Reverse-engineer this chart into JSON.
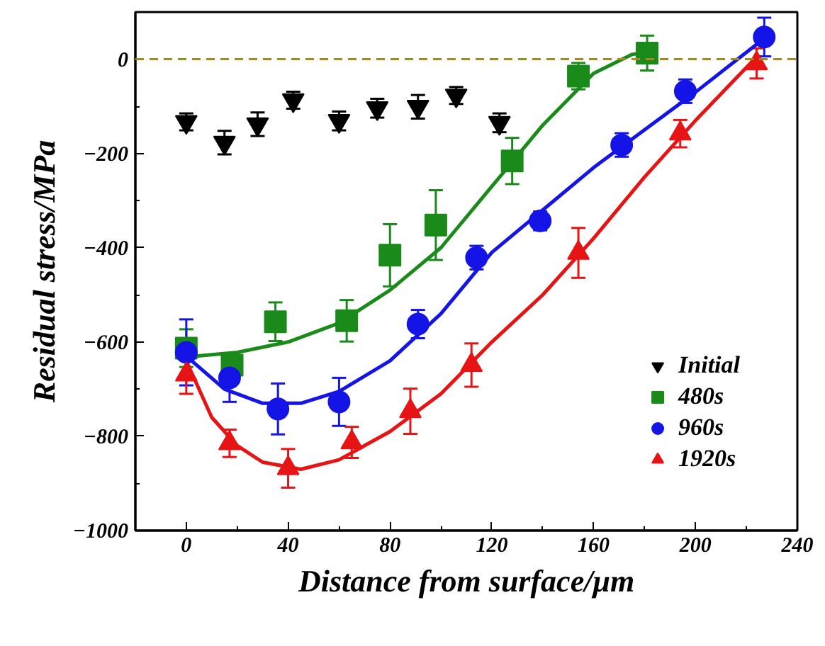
{
  "chart_data": {
    "type": "scatter",
    "xlabel": "Distance from surface/μm",
    "ylabel": "Residual stress/MPa",
    "xlim": [
      -20,
      240
    ],
    "ylim": [
      -1000,
      100
    ],
    "xticks": [
      0,
      {
        "value": 20,
        "label": null
      },
      40,
      {
        "value": 60,
        "label": null
      },
      80,
      {
        "value": 100,
        "label": null
      },
      120,
      {
        "value": 140,
        "label": null
      },
      160,
      {
        "value": 180,
        "label": null
      },
      200,
      {
        "value": 220,
        "label": null
      },
      240
    ],
    "yticks": [
      -1000,
      {
        "value": -900,
        "label": null
      },
      -800,
      {
        "value": -700,
        "label": null
      },
      -600,
      {
        "value": -500,
        "label": null
      },
      -400,
      {
        "value": -300,
        "label": null
      },
      -200,
      {
        "value": -100,
        "label": null
      },
      0
    ],
    "grid": false,
    "legend": "bottom right",
    "ref_lines": [
      {
        "axis": "y",
        "value": 0,
        "color": "#a08c1e",
        "line_style": "dashed"
      }
    ],
    "series": [
      {
        "name": "Initial",
        "color": "#000000",
        "x": [
          0,
          15,
          28,
          42,
          60,
          75,
          91,
          106,
          123
        ],
        "values": [
          -133,
          -177,
          -138,
          -87,
          -131,
          -104,
          -101,
          -77,
          -135
        ],
        "errors": [
          18,
          25,
          25,
          18,
          20,
          20,
          25,
          18,
          20
        ]
      },
      {
        "name": "480s",
        "marker": "square",
        "color": "#1a8a1a",
        "x": [
          0,
          18,
          35,
          63,
          80,
          98,
          128,
          154,
          181
        ],
        "values": [
          -613,
          -649,
          -557,
          -555,
          -416,
          -352,
          -216,
          -36,
          13
        ],
        "errors": [
          40,
          25,
          41,
          44,
          66,
          74,
          49,
          28,
          37
        ]
      },
      {
        "name": "960s",
        "marker": "circle",
        "color": "#1414e6",
        "x": [
          0,
          17,
          36,
          60,
          91,
          114,
          139,
          171,
          196,
          227
        ],
        "values": [
          -622,
          -676,
          -742,
          -727,
          -562,
          -421,
          -343,
          -182,
          -68,
          47
        ],
        "errors": [
          70,
          51,
          54,
          51,
          30,
          25,
          20,
          25,
          25,
          41
        ]
      },
      {
        "name": "1920s",
        "marker": "triangle",
        "color": "#e61414",
        "x": [
          0,
          17,
          40,
          65,
          88,
          112,
          154,
          194,
          224
        ],
        "values": [
          -669,
          -815,
          -868,
          -813,
          -747,
          -649,
          -411,
          -158,
          -9
        ],
        "errors": [
          41,
          29,
          41,
          33,
          48,
          46,
          53,
          29,
          32
        ]
      },
      {
        "type": "line",
        "color": "#1a8a1a",
        "x": [
          0,
          20,
          40,
          60,
          80,
          100,
          120,
          140,
          160,
          175,
          182
        ],
        "values": [
          -632,
          -622,
          -600,
          -560,
          -490,
          -400,
          -270,
          -140,
          -30,
          10,
          15
        ]
      },
      {
        "type": "line",
        "color": "#1414e6",
        "x": [
          0,
          15,
          30,
          45,
          60,
          80,
          100,
          120,
          140,
          160,
          180,
          200,
          226
        ],
        "values": [
          -630,
          -700,
          -730,
          -730,
          -705,
          -640,
          -540,
          -410,
          -320,
          -230,
          -150,
          -70,
          40
        ]
      },
      {
        "type": "line",
        "color": "#e61414",
        "x": [
          0,
          10,
          20,
          30,
          45,
          60,
          80,
          100,
          120,
          140,
          160,
          180,
          200,
          224
        ],
        "values": [
          -640,
          -760,
          -820,
          -855,
          -870,
          -850,
          -790,
          -710,
          -600,
          -500,
          -380,
          -250,
          -130,
          5
        ]
      }
    ]
  }
}
